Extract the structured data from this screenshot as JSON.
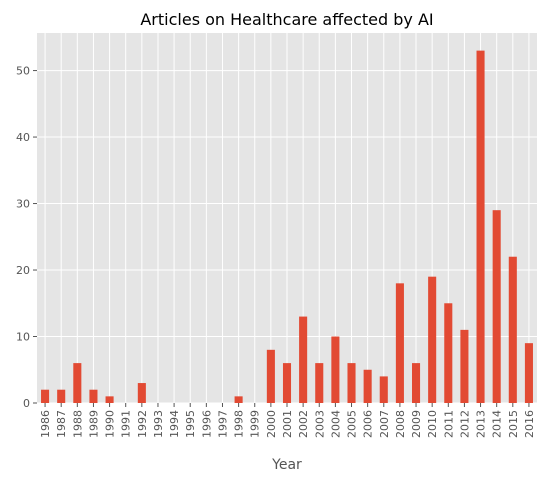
{
  "chart_data": {
    "type": "bar",
    "title": "Articles on Healthcare affected by AI",
    "xlabel": "Year",
    "ylabel": "",
    "categories": [
      "1986",
      "1987",
      "1988",
      "1989",
      "1990",
      "1991",
      "1992",
      "1993",
      "1994",
      "1995",
      "1996",
      "1997",
      "1998",
      "1999",
      "2000",
      "2001",
      "2002",
      "2003",
      "2004",
      "2005",
      "2006",
      "2007",
      "2008",
      "2009",
      "2010",
      "2011",
      "2012",
      "2013",
      "2014",
      "2015",
      "2016"
    ],
    "values": [
      2,
      2,
      6,
      2,
      1,
      0,
      3,
      0,
      0,
      0,
      0,
      0,
      1,
      0,
      8,
      6,
      13,
      6,
      10,
      6,
      5,
      4,
      18,
      6,
      19,
      15,
      11,
      53,
      29,
      22,
      9
    ],
    "ylim": [
      0,
      55.65
    ],
    "yticks": [
      0,
      10,
      20,
      30,
      40,
      50
    ],
    "grid": true,
    "legend": "none",
    "colors": {
      "bar": "#E24A33",
      "plot_background": "#E5E5E5",
      "grid": "#FFFFFF"
    }
  }
}
